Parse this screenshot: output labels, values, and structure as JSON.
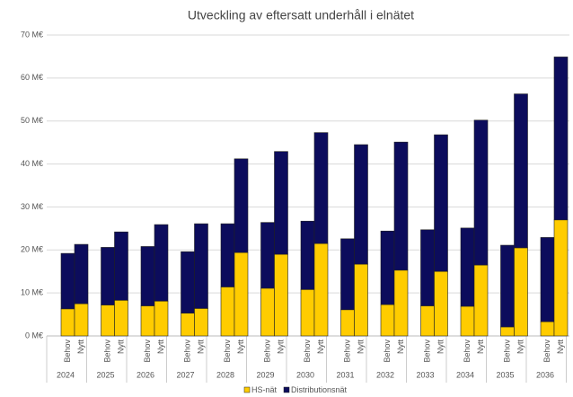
{
  "chart_data": {
    "type": "stacked-bar",
    "title": "Utveckling av eftersatt underhåll i elnätet",
    "categories": [
      "Behov",
      "Nytt",
      "Behov",
      "Nytt",
      "Behov",
      "Nytt",
      "Behov",
      "Nytt",
      "Behov",
      "Nytt",
      "Behov",
      "Nytt",
      "Behov",
      "Nytt",
      "Behov",
      "Nytt",
      "Behov",
      "Nytt",
      "Behov",
      "Nytt",
      "Behov",
      "Nytt",
      "Behov",
      "Nytt",
      "Behov",
      "Nytt"
    ],
    "category_groups": [
      "2024",
      "2025",
      "2026",
      "2027",
      "2028",
      "2029",
      "2030",
      "2031",
      "2032",
      "2033",
      "2034",
      "2035",
      "2036"
    ],
    "series": [
      {
        "name": "HS-nät",
        "color": "#ffcc00",
        "values": [
          6.3,
          7.5,
          7.2,
          8.3,
          7.0,
          8.1,
          5.3,
          6.4,
          11.4,
          19.4,
          11.1,
          19.0,
          10.8,
          21.5,
          6.1,
          16.7,
          7.3,
          15.3,
          7.0,
          15.0,
          6.9,
          16.5,
          2.1,
          20.5,
          3.3,
          27.0
        ]
      },
      {
        "name": "Distributionsnät",
        "color": "#0c0c5c",
        "values": [
          12.9,
          13.8,
          13.4,
          15.9,
          13.8,
          17.8,
          14.3,
          19.7,
          14.7,
          21.8,
          15.3,
          23.9,
          15.9,
          25.8,
          16.5,
          27.8,
          17.1,
          29.8,
          17.7,
          31.8,
          18.2,
          33.7,
          19.0,
          35.8,
          19.6,
          37.9
        ]
      }
    ],
    "ylim": [
      0,
      70
    ],
    "yticks": [
      {
        "value": 0,
        "label": "0 M€"
      },
      {
        "value": 10,
        "label": "10 M€"
      },
      {
        "value": 20,
        "label": "20 M€"
      },
      {
        "value": 30,
        "label": "30 M€"
      },
      {
        "value": 40,
        "label": "40 M€"
      },
      {
        "value": 50,
        "label": "50 M€"
      },
      {
        "value": 60,
        "label": "60 M€"
      },
      {
        "value": 70,
        "label": "70 M€"
      }
    ],
    "grid": true,
    "legend": "bottom"
  }
}
